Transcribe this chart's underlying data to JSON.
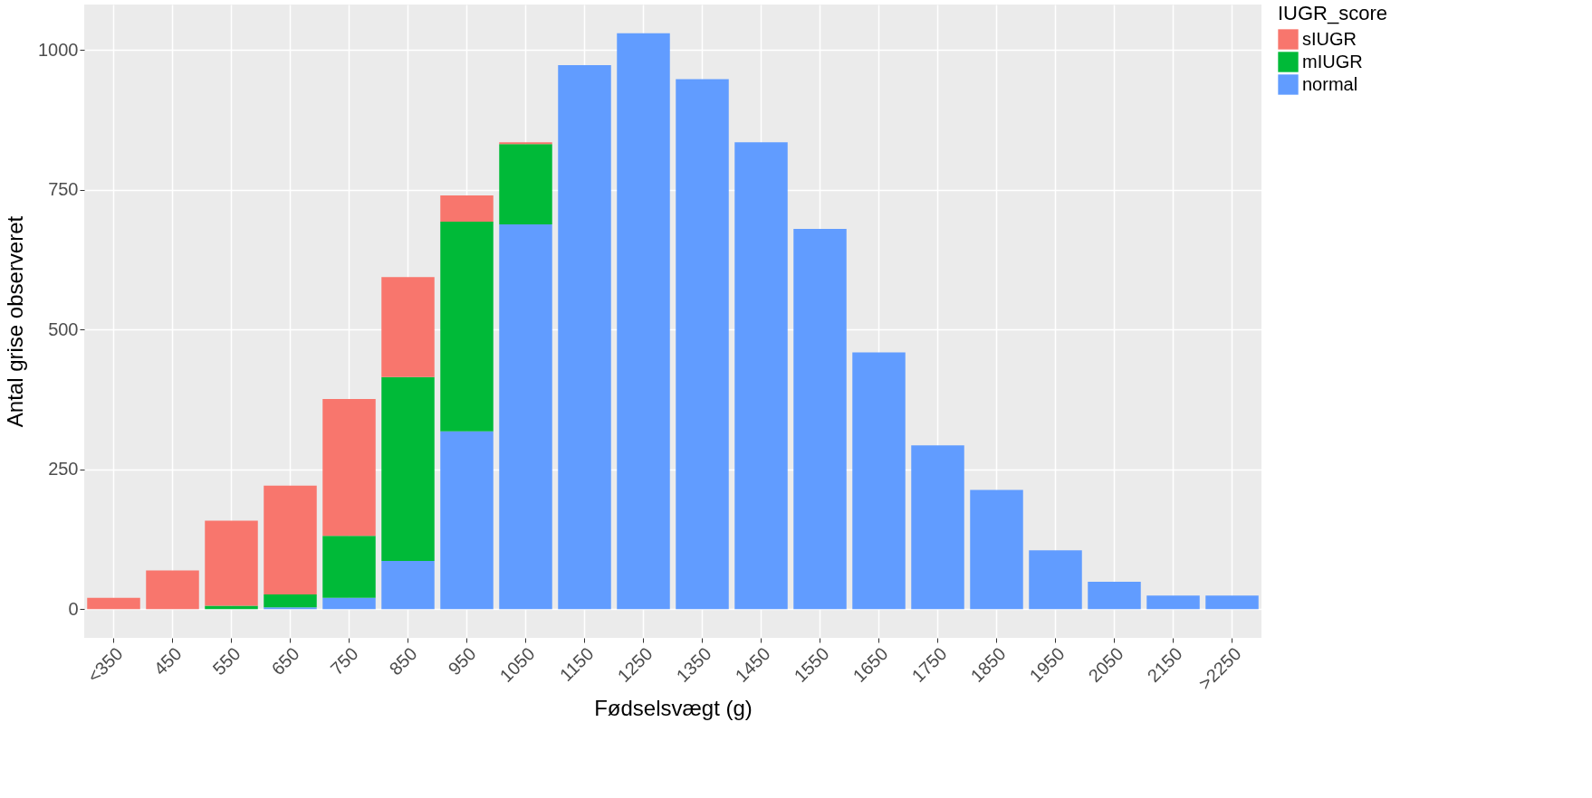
{
  "chart_data": {
    "type": "bar",
    "stacked": true,
    "xlabel": "Fødselsvægt (g)",
    "ylabel": "Antal grise observeret",
    "legend_title": "IUGR_score",
    "categories": [
      "<350",
      "450",
      "550",
      "650",
      "750",
      "850",
      "950",
      "1050",
      "1150",
      "1250",
      "1350",
      "1450",
      "1550",
      "1650",
      "1750",
      "1850",
      "1950",
      "2050",
      "2150",
      ">2250"
    ],
    "series": [
      {
        "name": "normal",
        "color": "#619cff",
        "values": [
          0,
          0,
          0,
          3,
          20,
          86,
          318,
          688,
          973,
          1030,
          948,
          835,
          680,
          459,
          293,
          213,
          105,
          49,
          24,
          24
        ]
      },
      {
        "name": "mIUGR",
        "color": "#00ba38",
        "values": [
          0,
          0,
          6,
          23,
          111,
          329,
          375,
          144,
          0,
          0,
          0,
          0,
          0,
          0,
          0,
          0,
          0,
          0,
          0,
          0
        ]
      },
      {
        "name": "sIUGR",
        "color": "#f8766d",
        "values": [
          20,
          69,
          152,
          195,
          245,
          179,
          47,
          3,
          0,
          0,
          0,
          0,
          0,
          0,
          0,
          0,
          0,
          0,
          0,
          0
        ]
      }
    ],
    "ylim": [
      -51.5,
      1081.5
    ],
    "yticks": [
      0,
      250,
      500,
      750,
      1000
    ],
    "grid": true,
    "legend": "right"
  }
}
